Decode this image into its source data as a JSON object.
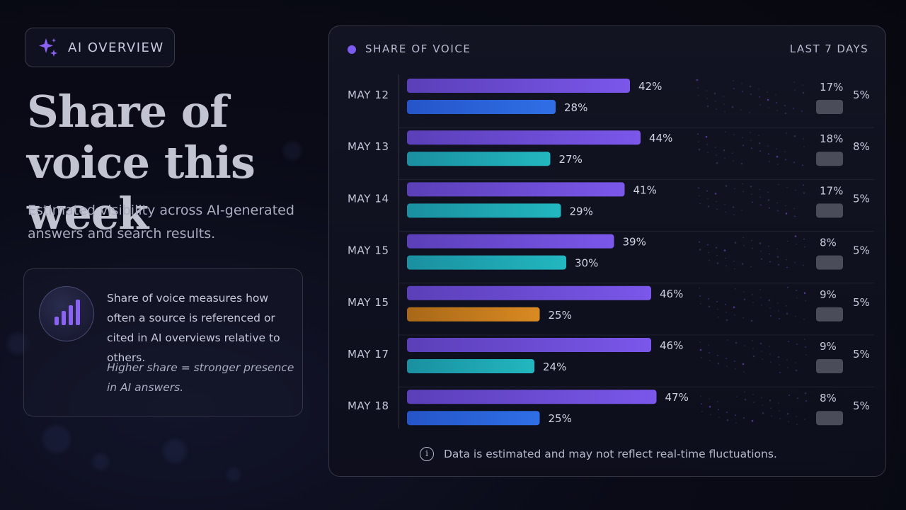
{
  "badge": {
    "label": "AI OVERVIEW",
    "icon": "sparkle-icon",
    "icon_color": "#8a63f5"
  },
  "hero": {
    "title": "Share of voice this week",
    "subtitle": "Estimated visibility across AI-generated answers and search results."
  },
  "info": {
    "icon": "bar-chart-icon",
    "text": "Share of voice measures how often a source is referenced or cited in AI overviews relative to others.",
    "note": "Higher share = stronger presence in AI answers."
  },
  "panel": {
    "title": "SHARE OF VOICE",
    "range": "LAST 7 DAYS",
    "footer": "Data is estimated and may not reflect real-time fluctuations.",
    "footer_icon": "info-icon"
  },
  "colors": {
    "primary": "#7b57ea",
    "blue": "#2f6fe6",
    "teal": "#22b7c0",
    "orange": "#d98a22",
    "muted": "#4a4c5a"
  },
  "chart_data": {
    "type": "bar",
    "orientation": "horizontal",
    "title": "SHARE OF VOICE",
    "categories": [
      "MAY 12",
      "MAY 13",
      "MAY 14",
      "MAY 15",
      "MAY 15",
      "MAY 17",
      "MAY 18"
    ],
    "series": [
      {
        "values": [
          42,
          44,
          41,
          39,
          46,
          46,
          47
        ],
        "labels": [
          "42%",
          "44%",
          "41%",
          "39%",
          "46%",
          "46%",
          "47%"
        ]
      },
      {
        "values": [
          28,
          27,
          29,
          30,
          25,
          24,
          25
        ],
        "labels": [
          "28%",
          "27%",
          "29%",
          "30%",
          "25%",
          "24%",
          "25%"
        ],
        "bar_colors": [
          "blue",
          "teal",
          "teal",
          "teal",
          "orange",
          "teal",
          "blue"
        ]
      },
      {
        "values": [
          17,
          18,
          17,
          8,
          9,
          9,
          8
        ],
        "labels": [
          "17%",
          "18%",
          "17%",
          "8%",
          "9%",
          "9%",
          "8%"
        ]
      },
      {
        "values": [
          5,
          8,
          5,
          5,
          5,
          5,
          5
        ],
        "labels": [
          "5%",
          "8%",
          "5%",
          "5%",
          "5%",
          "5%",
          "5%"
        ]
      }
    ],
    "xlim": [
      0,
      50
    ],
    "grid": false,
    "legend": "none"
  }
}
